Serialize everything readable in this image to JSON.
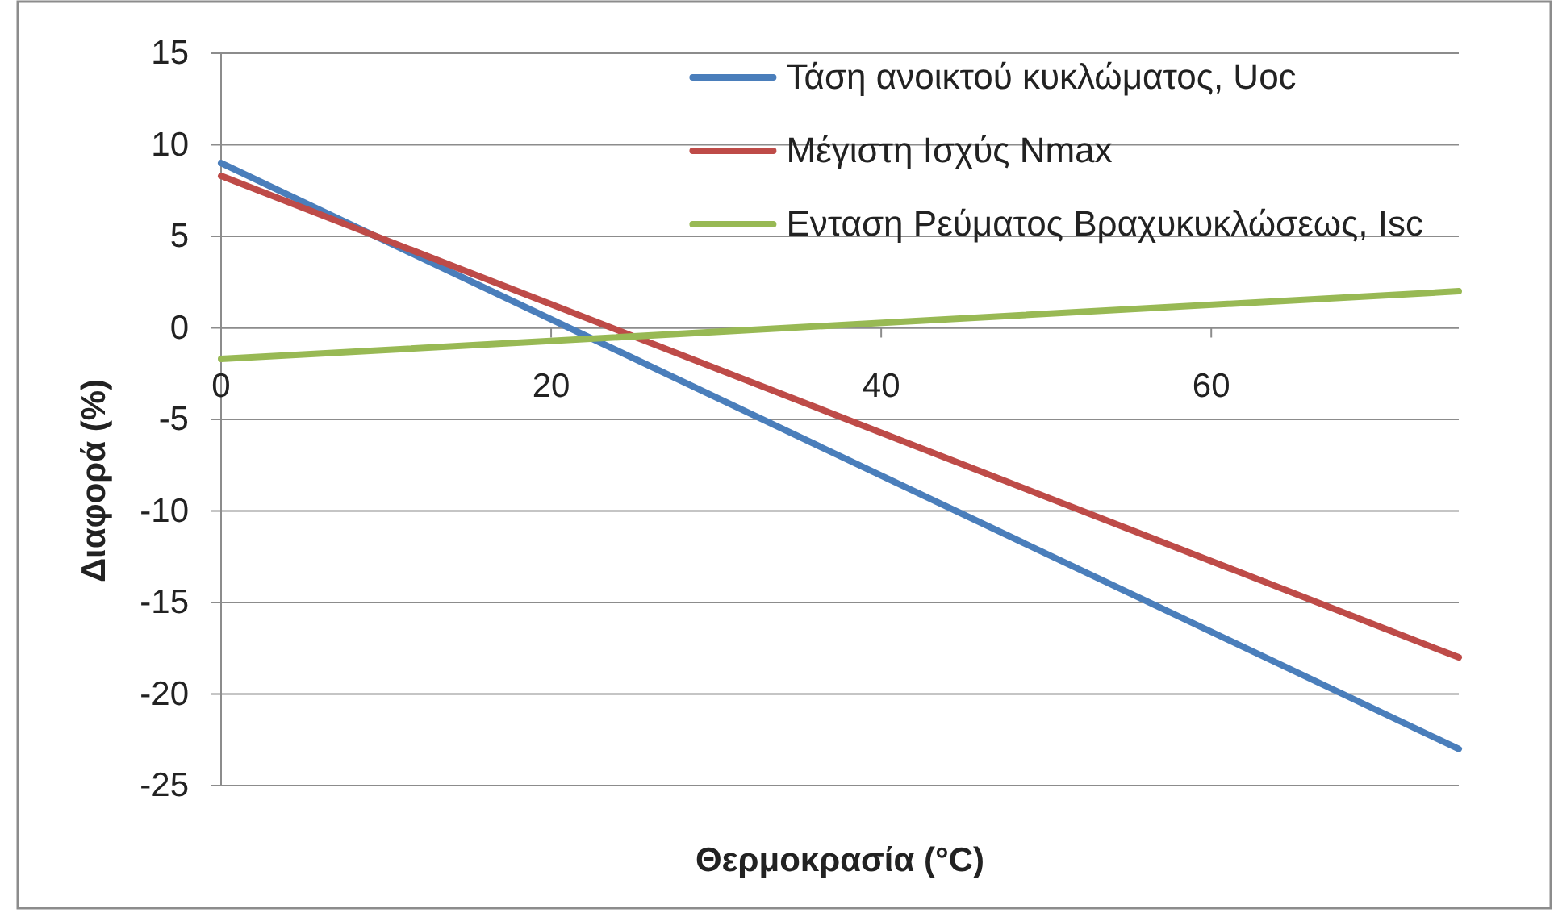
{
  "chart_data": {
    "type": "line",
    "xlabel": "Θερμοκρασία (°C)",
    "ylabel": "Διαφορά (%)",
    "x": [
      0,
      75
    ],
    "series": [
      {
        "name": "Τάση ανοικτού κυκλώματος, Uoc",
        "color": "#4a7ebb",
        "values": [
          9,
          -23
        ]
      },
      {
        "name": "Μέγιστη Ισχύς Nmax",
        "color": "#be4b48",
        "values": [
          8.3,
          -18
        ]
      },
      {
        "name": "Ενταση Ρεύματος Βραχυκυκλώσεως, Isc",
        "color": "#98b954",
        "values": [
          -1.7,
          2
        ]
      }
    ],
    "xlim": [
      0,
      75
    ],
    "xticks": [
      0,
      20,
      40,
      60
    ],
    "ylim": [
      -25,
      15
    ],
    "yticks": [
      15,
      10,
      5,
      0,
      -5,
      -10,
      -15,
      -20,
      -25
    ],
    "grid": "y",
    "legend": "top right",
    "marker": "none",
    "line_style": "solid"
  }
}
